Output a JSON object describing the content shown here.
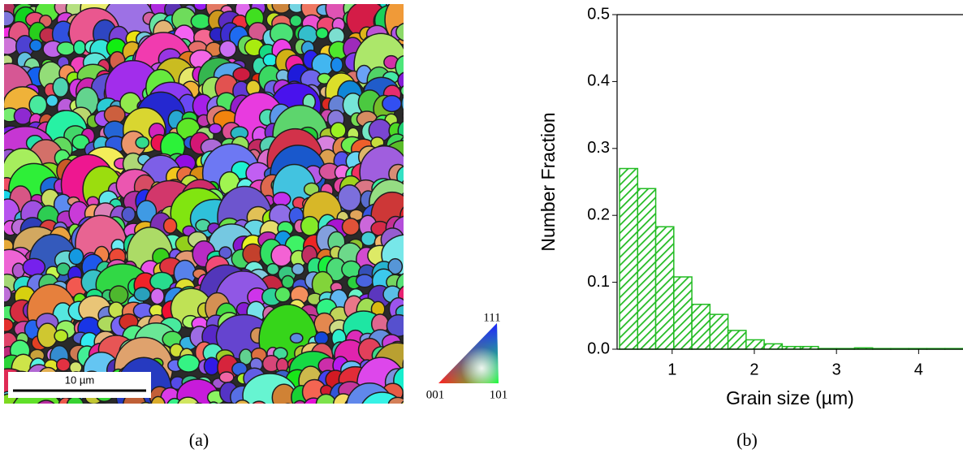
{
  "figure_a": {
    "scale_bar": "10 µm",
    "ipf_111": "111",
    "ipf_001": "001",
    "ipf_101": "101",
    "caption": "(a)"
  },
  "chart_data": {
    "type": "histogram",
    "caption": "(b)",
    "x_label": "Grain size (µm)",
    "y_label": "Number Fraction",
    "bins": [
      0.36,
      0.58,
      0.8,
      1.02,
      1.24,
      1.46,
      1.68,
      1.9,
      2.12,
      2.34,
      2.56,
      2.78,
      3.0,
      3.22,
      3.44,
      3.66,
      3.88,
      4.1,
      4.32,
      4.54
    ],
    "values": [
      0.27,
      0.24,
      0.183,
      0.108,
      0.067,
      0.052,
      0.028,
      0.014,
      0.008,
      0.004,
      0.004,
      0.001,
      0.001,
      0.002,
      0.001,
      0.001,
      0.001,
      0.001,
      0.001
    ],
    "color": "#22bb22",
    "xlim": [
      0.33,
      4.54
    ],
    "ylim": [
      0,
      0.5
    ],
    "xticks": [
      1,
      2,
      3,
      4
    ],
    "yticks": [
      {
        "value": 0,
        "label": "0.0"
      },
      0.1,
      0.2,
      0.3,
      0.4,
      0.5
    ]
  }
}
